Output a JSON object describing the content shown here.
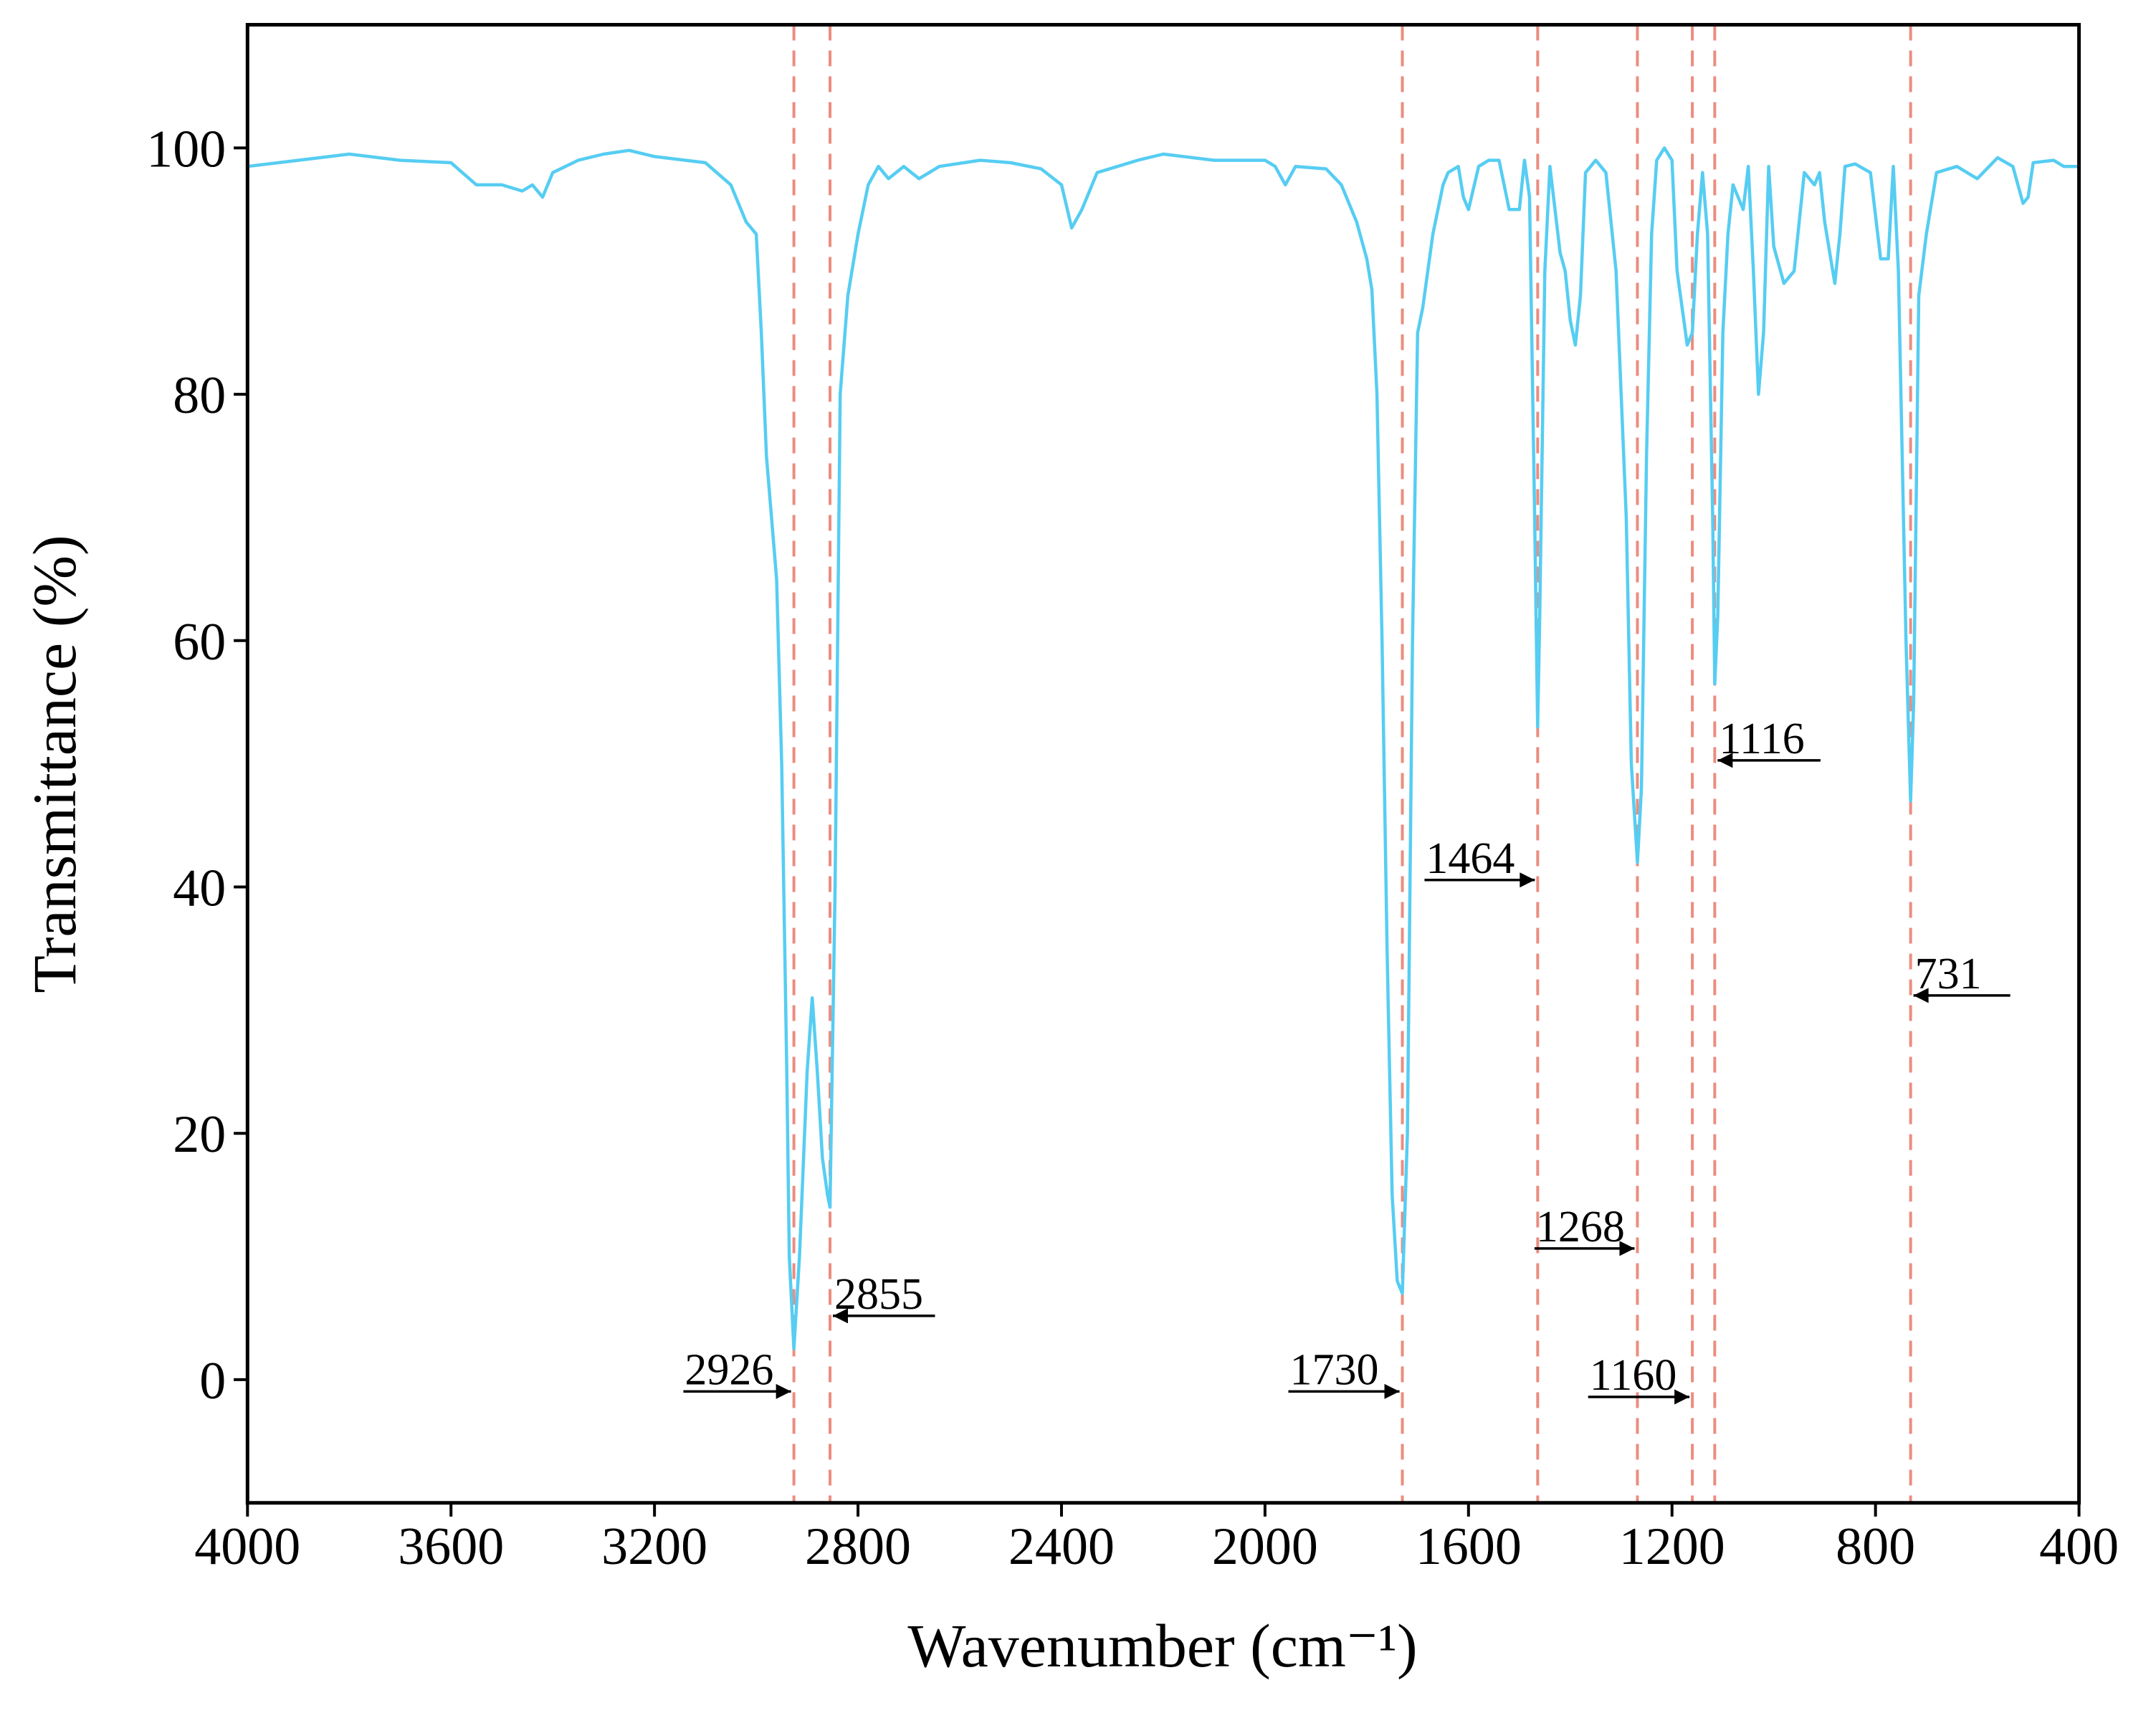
{
  "chart_data": {
    "type": "line",
    "x_label": "Wavenumber (cm⁻¹)",
    "y_label": "Transmittance (%)",
    "color": "#56cdf2",
    "xlim": [
      4000,
      400
    ],
    "xticks": [
      4000,
      3600,
      3200,
      2800,
      2400,
      2000,
      1600,
      1200,
      800,
      400
    ],
    "ylim": [
      -10,
      110
    ],
    "yticks": [
      0,
      20,
      40,
      60,
      80,
      100
    ],
    "x": [
      4000,
      3900,
      3800,
      3700,
      3600,
      3550,
      3500,
      3460,
      3440,
      3420,
      3400,
      3350,
      3300,
      3250,
      3200,
      3100,
      3050,
      3020,
      3000,
      2990,
      2980,
      2970,
      2960,
      2950,
      2940,
      2935,
      2926,
      2915,
      2900,
      2890,
      2880,
      2870,
      2860,
      2855,
      2845,
      2835,
      2820,
      2800,
      2780,
      2760,
      2740,
      2710,
      2680,
      2640,
      2560,
      2500,
      2440,
      2400,
      2380,
      2360,
      2330,
      2250,
      2200,
      2100,
      2000,
      1980,
      1960,
      1940,
      1880,
      1850,
      1820,
      1800,
      1790,
      1780,
      1770,
      1760,
      1750,
      1740,
      1730,
      1720,
      1710,
      1700,
      1690,
      1670,
      1650,
      1640,
      1620,
      1610,
      1600,
      1580,
      1560,
      1540,
      1520,
      1500,
      1490,
      1480,
      1470,
      1464,
      1460,
      1450,
      1440,
      1420,
      1410,
      1400,
      1390,
      1380,
      1370,
      1350,
      1330,
      1310,
      1290,
      1280,
      1268,
      1260,
      1250,
      1240,
      1230,
      1215,
      1200,
      1190,
      1170,
      1160,
      1150,
      1140,
      1130,
      1120,
      1116,
      1110,
      1100,
      1090,
      1080,
      1060,
      1050,
      1040,
      1030,
      1020,
      1010,
      1000,
      980,
      960,
      940,
      920,
      910,
      900,
      880,
      870,
      860,
      840,
      810,
      790,
      775,
      765,
      755,
      740,
      731,
      725,
      715,
      700,
      680,
      640,
      600,
      560,
      530,
      510,
      500,
      490,
      450,
      430,
      400
    ],
    "values": [
      98.5,
      99,
      99.5,
      99,
      98.8,
      97,
      97,
      96.5,
      97,
      96,
      98,
      99,
      99.5,
      99.8,
      99.3,
      98.8,
      97,
      94,
      93,
      85,
      75,
      70,
      65,
      50,
      25,
      10,
      2.5,
      10,
      25,
      31,
      25,
      18,
      15,
      14,
      40,
      80,
      88,
      93,
      97,
      98.5,
      97.5,
      98.5,
      97.5,
      98.5,
      99,
      98.8,
      98.3,
      97,
      93.5,
      95,
      98,
      99,
      99.5,
      99,
      99,
      98.5,
      97,
      98.5,
      98.3,
      97,
      94,
      91,
      88.5,
      80,
      60,
      35,
      15,
      8,
      7,
      20,
      60,
      85,
      87,
      93,
      97,
      98,
      98.5,
      96,
      95,
      98.5,
      99,
      99,
      95,
      95,
      99,
      96,
      70,
      53,
      62,
      90,
      98.5,
      91.5,
      90,
      86,
      84,
      88,
      98,
      99,
      98,
      90,
      70,
      50,
      42,
      48,
      75,
      93,
      99,
      100,
      99,
      90,
      84,
      85,
      93,
      98,
      93,
      70,
      56.5,
      62,
      85,
      93,
      97,
      95,
      98.5,
      90,
      80,
      85,
      98.5,
      92,
      89,
      90,
      98,
      97,
      98,
      94,
      89,
      93,
      98.5,
      98.7,
      98,
      91,
      91,
      98.5,
      90,
      60,
      47,
      55,
      88,
      93,
      98,
      98.5,
      97.5,
      99.2,
      98.5,
      95.5,
      96,
      98.8,
      99,
      98.5,
      98.5
    ],
    "annotations": [
      {
        "text": "2926",
        "x": 2926
      },
      {
        "text": "2855",
        "x": 2855
      },
      {
        "text": "1730",
        "x": 1730
      },
      {
        "text": "1464",
        "x": 1464
      },
      {
        "text": "1268",
        "x": 1268
      },
      {
        "text": "1160",
        "x": 1160
      },
      {
        "text": "1116",
        "x": 1116
      },
      {
        "text": "731",
        "x": 731
      }
    ],
    "annotation_color": "#ec8c80"
  }
}
